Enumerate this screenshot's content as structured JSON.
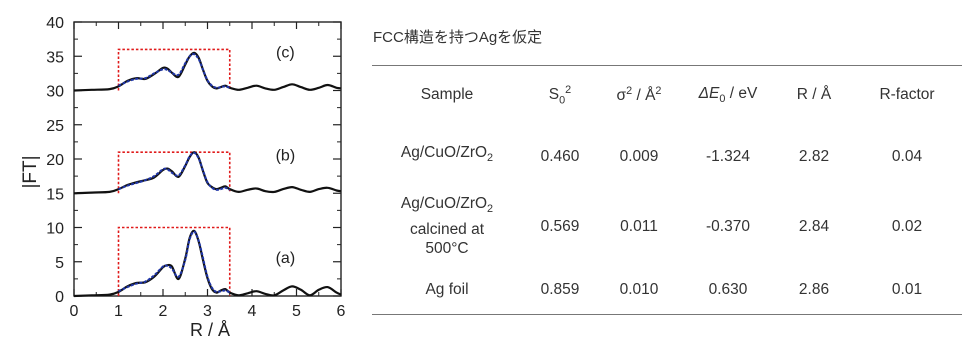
{
  "chart_data": {
    "type": "line",
    "title": "",
    "xlabel": "R / Å",
    "ylabel": "|FT|",
    "xlim": [
      0,
      6
    ],
    "ylim": [
      0,
      40
    ],
    "x_ticks": [
      "0",
      "1",
      "2",
      "3",
      "4",
      "5",
      "6"
    ],
    "y_ticks": [
      "0",
      "5",
      "10",
      "15",
      "20",
      "25",
      "30",
      "35",
      "40"
    ],
    "colors": {
      "experiment": "#111111",
      "fit": "#1f35a8",
      "window": "#e01a1a"
    },
    "panels": [
      {
        "label": "(a)",
        "offset": 0,
        "window": {
          "r_min": 1.0,
          "r_max": 3.5,
          "height": 10
        },
        "series": [
          {
            "role": "experiment",
            "x": [
              0,
              0.4,
              0.8,
              1.0,
              1.2,
              1.4,
              1.6,
              1.8,
              2.0,
              2.1,
              2.2,
              2.35,
              2.5,
              2.6,
              2.7,
              2.8,
              2.9,
              3.0,
              3.1,
              3.2,
              3.3,
              3.4,
              3.5,
              3.7,
              3.9,
              4.1,
              4.3,
              4.5,
              4.7,
              4.9,
              5.1,
              5.3,
              5.5,
              5.7,
              5.9,
              6.0
            ],
            "y": [
              0,
              0.1,
              0.2,
              0.6,
              1.4,
              1.9,
              2.0,
              2.8,
              4.2,
              4.5,
              4.3,
              2.5,
              5.5,
              8.5,
              9.5,
              8.0,
              5.2,
              2.6,
              1.0,
              0.5,
              0.8,
              1.0,
              0.5,
              0.1,
              0.4,
              0.7,
              0.3,
              0.1,
              0.8,
              1.4,
              0.9,
              0.1,
              0.9,
              1.3,
              0.5,
              0.2
            ]
          },
          {
            "role": "fit",
            "x": [
              1.0,
              1.2,
              1.4,
              1.6,
              1.8,
              2.0,
              2.1,
              2.2,
              2.35,
              2.5,
              2.6,
              2.7,
              2.8,
              2.9,
              3.0,
              3.1,
              3.2,
              3.3,
              3.4,
              3.5
            ],
            "y": [
              0.7,
              1.3,
              1.8,
              2.1,
              3.0,
              4.3,
              4.4,
              4.0,
              2.8,
              5.3,
              8.3,
              9.4,
              8.1,
              5.5,
              2.8,
              1.2,
              0.6,
              0.7,
              0.8,
              0.5
            ]
          }
        ]
      },
      {
        "label": "(b)",
        "offset": 15,
        "window": {
          "r_min": 1.0,
          "r_max": 3.5,
          "height": 21
        },
        "series": [
          {
            "role": "experiment",
            "x": [
              0,
              0.4,
              0.8,
              1.0,
              1.2,
              1.4,
              1.6,
              1.8,
              2.0,
              2.1,
              2.2,
              2.35,
              2.5,
              2.6,
              2.7,
              2.8,
              2.9,
              3.0,
              3.1,
              3.2,
              3.3,
              3.4,
              3.5,
              3.7,
              3.9,
              4.1,
              4.3,
              4.5,
              4.7,
              4.9,
              5.1,
              5.3,
              5.5,
              5.7,
              5.9,
              6.0
            ],
            "y": [
              15,
              15.1,
              15.2,
              15.6,
              16.2,
              16.6,
              16.9,
              17.3,
              18.4,
              18.6,
              18.2,
              17.4,
              19.0,
              20.3,
              21.0,
              20.2,
              18.2,
              16.5,
              15.9,
              15.6,
              15.8,
              16.0,
              15.6,
              15.2,
              15.5,
              15.7,
              15.3,
              15.2,
              15.6,
              15.9,
              15.5,
              15.2,
              15.6,
              15.8,
              15.4,
              15.3
            ]
          },
          {
            "role": "fit",
            "x": [
              1.0,
              1.2,
              1.4,
              1.6,
              1.8,
              2.0,
              2.1,
              2.2,
              2.35,
              2.5,
              2.6,
              2.7,
              2.8,
              2.9,
              3.0,
              3.1,
              3.2,
              3.3,
              3.4,
              3.5
            ],
            "y": [
              15.6,
              16.1,
              16.5,
              16.9,
              17.5,
              18.5,
              18.5,
              18.0,
              17.6,
              19.1,
              20.4,
              20.9,
              20.1,
              18.3,
              16.6,
              15.8,
              15.5,
              15.6,
              15.8,
              15.5
            ]
          }
        ]
      },
      {
        "label": "(c)",
        "offset": 30,
        "window": {
          "r_min": 1.0,
          "r_max": 3.5,
          "height": 36
        },
        "series": [
          {
            "role": "experiment",
            "x": [
              0,
              0.4,
              0.8,
              1.0,
              1.2,
              1.4,
              1.6,
              1.8,
              2.0,
              2.1,
              2.2,
              2.35,
              2.5,
              2.6,
              2.7,
              2.8,
              2.9,
              3.0,
              3.1,
              3.2,
              3.3,
              3.4,
              3.5,
              3.7,
              3.9,
              4.1,
              4.3,
              4.5,
              4.7,
              4.9,
              5.1,
              5.3,
              5.5,
              5.7,
              5.9,
              6.0
            ],
            "y": [
              30,
              30.1,
              30.2,
              30.6,
              31.4,
              31.8,
              31.7,
              32.4,
              33.3,
              33.2,
              32.6,
              32.0,
              33.8,
              35.0,
              35.5,
              34.8,
              33.0,
              31.4,
              30.6,
              30.3,
              30.5,
              30.7,
              30.4,
              30.1,
              30.4,
              30.7,
              30.3,
              30.1,
              30.5,
              30.9,
              30.5,
              30.1,
              30.4,
              30.8,
              30.4,
              30.3
            ]
          },
          {
            "role": "fit",
            "x": [
              1.0,
              1.2,
              1.4,
              1.6,
              1.8,
              2.0,
              2.1,
              2.2,
              2.35,
              2.5,
              2.6,
              2.7,
              2.8,
              2.9,
              3.0,
              3.1,
              3.2,
              3.3,
              3.4,
              3.5
            ],
            "y": [
              30.7,
              31.3,
              31.7,
              31.8,
              32.5,
              33.1,
              33.0,
              32.6,
              32.3,
              34.0,
              35.0,
              35.3,
              34.6,
              33.0,
              31.5,
              30.7,
              30.4,
              30.5,
              30.6,
              30.4
            ]
          }
        ]
      }
    ],
    "table": {
      "caption": "FCC構造を持つAgを仮定",
      "headers": {
        "sample": "Sample",
        "s0_main": "S",
        "s0_sub": "0",
        "s0_sup": "2",
        "sigma_main": "σ",
        "sigma_sup1": "2",
        "sigma_unit": " / Å",
        "sigma_sup2": "2",
        "de_main": "ΔE",
        "de_sub": "0",
        "de_unit": " / eV",
        "r": "R / Å",
        "rf": "R-factor"
      },
      "rows": [
        {
          "sample_l1_main": "Ag/CuO/ZrO",
          "sample_l1_sub": "2",
          "sample_l2": "",
          "sample_l3": "",
          "s0": "0.460",
          "sigma": "0.009",
          "de0": "-1.324",
          "r": "2.82",
          "rf": "0.04"
        },
        {
          "sample_l1_main": "Ag/CuO/ZrO",
          "sample_l1_sub": "2",
          "sample_l2": "calcined at",
          "sample_l3": "500°C",
          "s0": "0.569",
          "sigma": "0.011",
          "de0": "-0.370",
          "r": "2.84",
          "rf": "0.02"
        },
        {
          "sample_l1_main": "Ag foil",
          "sample_l1_sub": "",
          "sample_l2": "",
          "sample_l3": "",
          "s0": "0.859",
          "sigma": "0.010",
          "de0": "0.630",
          "r": "2.86",
          "rf": "0.01"
        }
      ]
    }
  }
}
